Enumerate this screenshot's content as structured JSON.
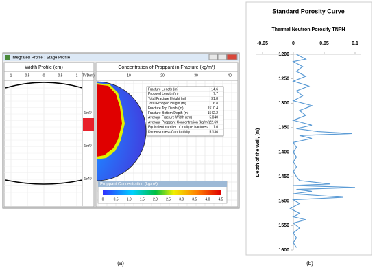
{
  "screenshot": {
    "window_title": "Integrated Profile : Stage Profile",
    "left_panel": {
      "title": "Width Profile (cm)",
      "ticks": [
        "1",
        "0.5",
        "0",
        "0.5",
        "1"
      ],
      "axis_label": "TVD(m)",
      "depths": [
        "1520",
        "1530",
        "1540"
      ]
    },
    "right_panel": {
      "title": "Concentration of Proppant in Fracture (kg/m³)",
      "ticks": [
        "10",
        "20",
        "30",
        "40"
      ],
      "table": {
        "rows": [
          [
            "Fracture Length (m)",
            "14.6"
          ],
          [
            "Propped Length (m)",
            "7.7"
          ],
          [
            "Total Fracture Height (m)",
            "31.8"
          ],
          [
            "Total Propped Height (m)",
            "16.8"
          ],
          [
            "Fracture Top Depth (m)",
            "1510.4"
          ],
          [
            "Fracture Bottom Depth (m)",
            "1542.2"
          ],
          [
            "Average Fracture Width (cm)",
            "5.040"
          ],
          [
            "Average Proppant Concentration (kg/m²)",
            "22.69"
          ],
          [
            "Equivalent number of multiple fractures",
            "1.0"
          ],
          [
            "Dimensionless Conductivity",
            "5.136"
          ]
        ]
      },
      "legend": {
        "title": "Proppant Concentration (kg/m²)",
        "ticks": [
          "0",
          "0.5",
          "1.0",
          "1.5",
          "2.0",
          "2.5",
          "3.0",
          "3.5",
          "4.0",
          "4.5"
        ]
      }
    },
    "caption": "(a)"
  },
  "chart_data": {
    "type": "line",
    "title": "Standard Porosity Curve",
    "subtitle": "Thermal Neutron Porosity TNPH",
    "y_label": "Depth of the well, (m)",
    "caption": "(b)",
    "color": "#5b9bd5",
    "depths": [
      1200,
      1210,
      1215,
      1225,
      1235,
      1245,
      1255,
      1265,
      1275,
      1285,
      1295,
      1305,
      1315,
      1325,
      1335,
      1345,
      1352,
      1358,
      1362,
      1366,
      1372,
      1380,
      1390,
      1400,
      1410,
      1420,
      1430,
      1440,
      1450,
      1458,
      1465,
      1468,
      1472,
      1476,
      1480,
      1485,
      1492,
      1497,
      1505,
      1515,
      1525,
      1532,
      1538,
      1545,
      1555,
      1565,
      1575,
      1585,
      1595
    ],
    "values": [
      0.005,
      0.02,
      0.0,
      0.015,
      0.005,
      0.02,
      0.0,
      0.025,
      0.005,
      0.015,
      0.0,
      0.03,
      0.01,
      0.02,
      0.0,
      0.03,
      0.005,
      0.04,
      0.095,
      0.01,
      0.03,
      0.0,
      0.005,
      0.0,
      0.005,
      0.0,
      0.005,
      0.0,
      0.005,
      0.01,
      0.06,
      0.0,
      0.1,
      0.005,
      0.03,
      0.0,
      0.08,
      0.0,
      0.01,
      -0.005,
      0.01,
      0.0,
      0.02,
      0.0,
      0.01,
      0.0,
      0.005,
      0.0,
      0.005
    ],
    "xlim": [
      -0.06,
      0.11
    ],
    "xticks": [
      -0.05,
      0,
      0.05,
      0.1
    ],
    "ylim": [
      1200,
      1600
    ],
    "yticks": [
      1200,
      1250,
      1300,
      1350,
      1400,
      1450,
      1500,
      1550,
      1600
    ]
  }
}
